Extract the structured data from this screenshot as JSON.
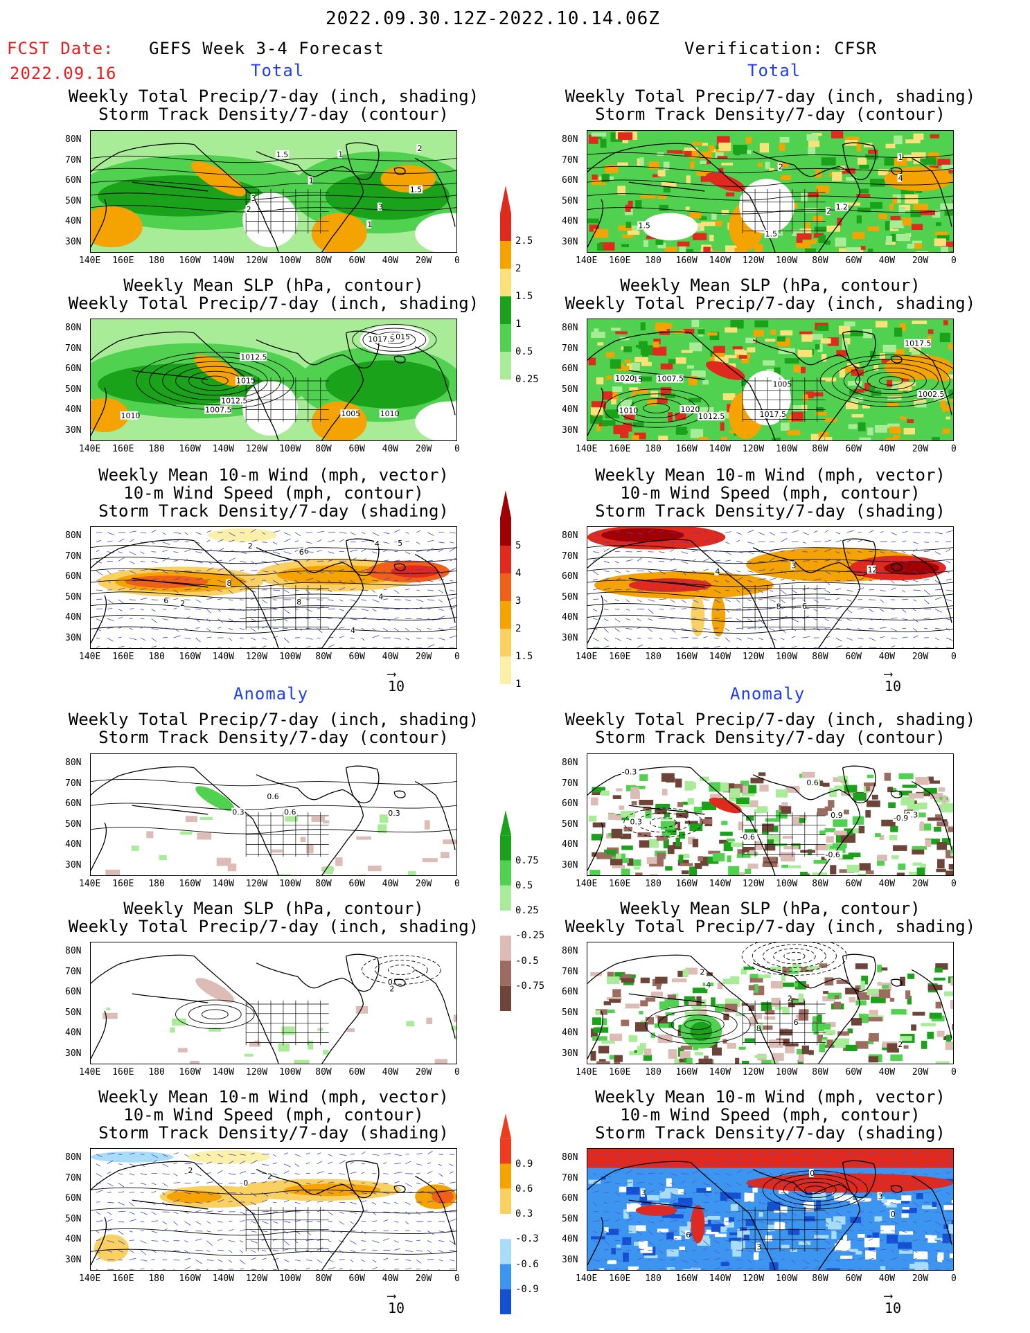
{
  "header": {
    "date_range": "2022.09.30.12Z-2022.10.14.06Z",
    "fcst_label": "FCST Date:",
    "fcst_date": "2022.09.16",
    "left_title": "GEFS Week 3-4 Forecast",
    "right_title": "Verification: CFSR",
    "total_label": "Total",
    "anomaly_label": "Anomaly"
  },
  "panel_titles": {
    "precip_track": [
      "Weekly Total Precip/7-day (inch, shading)",
      "Storm Track Density/7-day (contour)"
    ],
    "slp_precip": [
      "Weekly Mean SLP (hPa, contour)",
      "Weekly Total Precip/7-day (inch, shading)"
    ],
    "wind_track": [
      "Weekly Mean 10-m Wind (mph, vector)",
      "10-m Wind Speed (mph, contour)",
      "Storm Track Density/7-day (shading)"
    ]
  },
  "axes": {
    "lat_labels": [
      "80N",
      "70N",
      "60N",
      "50N",
      "40N",
      "30N"
    ],
    "lon_labels": [
      "140E",
      "160E",
      "180",
      "160W",
      "140W",
      "120W",
      "100W",
      "80W",
      "60W",
      "40W",
      "20W",
      "0"
    ]
  },
  "vector_ref": "10",
  "colorbars": {
    "total_precip": {
      "labels": [
        "2.5",
        "2",
        "1.5",
        "1",
        "0.5",
        "0.25"
      ],
      "colors": [
        "#e02a1e",
        "#f5a300",
        "#fae17a",
        "#1aa21a",
        "#50d250",
        "#a8ec98"
      ]
    },
    "total_track": {
      "labels": [
        "5",
        "4",
        "3",
        "2",
        "1.5",
        "1"
      ],
      "colors": [
        "#a00000",
        "#e02a1e",
        "#f06018",
        "#f5a300",
        "#fad060",
        "#fbf0a8"
      ]
    },
    "anom_precip": {
      "labels": [
        "0.75",
        "0.5",
        "0.25",
        "-0.25",
        "-0.5",
        "-0.75"
      ],
      "colors": [
        "#1aa21a",
        "#50d250",
        "#a8ec98",
        "#ffffff",
        "#dcbcb4",
        "#9c6c60",
        "#6e4438"
      ]
    },
    "anom_track": {
      "labels": [
        "0.9",
        "0.6",
        "0.3",
        "-0.3",
        "-0.6",
        "-0.9"
      ],
      "colors": [
        "#f03c1e",
        "#f5a300",
        "#fad060",
        "#ffffff",
        "#a8dcf8",
        "#3c96f0",
        "#1450d2"
      ]
    }
  },
  "panel_contour_labels": {
    "L1": [
      "1",
      "1.5",
      "2",
      "3",
      "1.5",
      "2",
      "3",
      "1",
      "1"
    ],
    "L2": [
      "1012.5",
      "1010",
      "1007.5",
      "1005",
      "1012.5",
      "1010",
      "1015",
      "1017.5",
      "1015"
    ],
    "L3": [
      "4",
      "2",
      "8",
      "6",
      "4",
      "6",
      "8",
      "5",
      "6",
      "2",
      "4"
    ],
    "L4": [
      "0.3",
      "0.6",
      "0.3",
      "0.6"
    ],
    "L5": [
      "2",
      "0"
    ],
    "L6": [
      "0",
      "2",
      "2"
    ],
    "R1": [
      "1.5",
      "1",
      "1.2",
      "1.5",
      "2",
      "4",
      "2"
    ],
    "R2": [
      "1010",
      "1012.5",
      "1015",
      "1017.5",
      "1007.5",
      "1005",
      "1002.5",
      "1020",
      "1020",
      "1017.5"
    ],
    "R3": [
      "8",
      "6",
      "4",
      "12",
      "3"
    ],
    "R4": [
      "0.3",
      "0.3",
      "0.6",
      "0.9",
      "-0.3",
      "-0.6",
      "-0.9",
      "-0.6"
    ],
    "R5": [
      "2",
      "4",
      "2",
      "6",
      "8",
      "2"
    ],
    "R6": [
      "3",
      "0",
      "6",
      "3",
      "0",
      "3"
    ]
  }
}
